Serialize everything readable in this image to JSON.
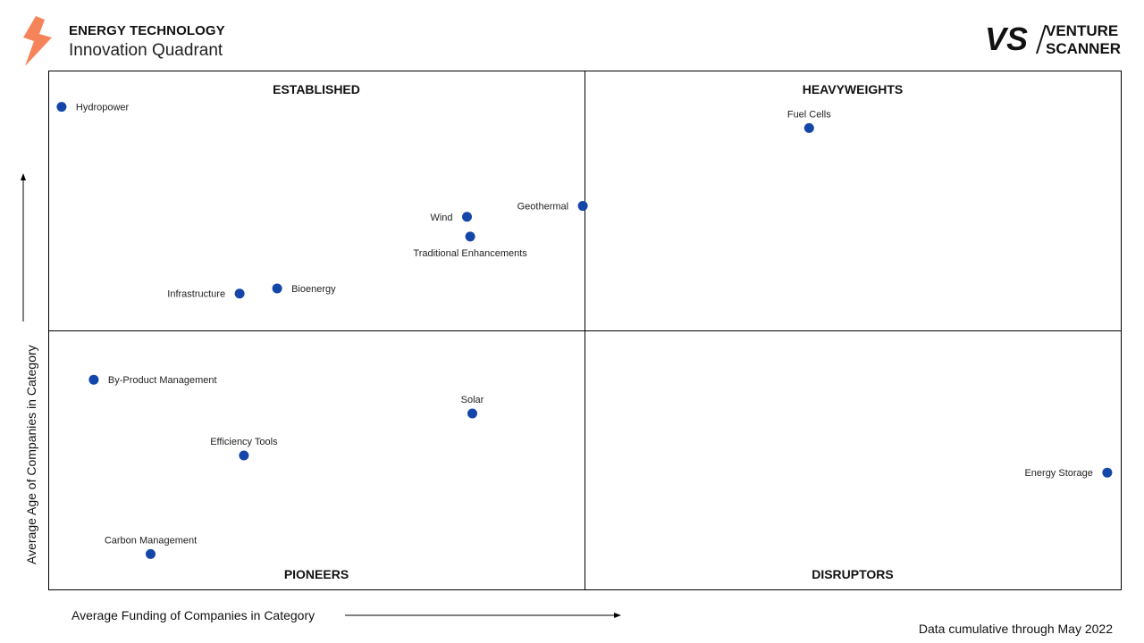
{
  "header": {
    "title": "ENERGY TECHNOLOGY",
    "subtitle": "Innovation Quadrant",
    "logo_icon": "lightning-bolt-icon",
    "logo_color": "#F5845A"
  },
  "brand": {
    "mark": "VS",
    "name_line1": "VENTURE",
    "name_line2": "SCANNER"
  },
  "footnote": "Data cumulative through May 2022",
  "colors": {
    "point": "#1346A8",
    "axis": "#000000"
  },
  "chart_data": {
    "type": "scatter",
    "xlabel": "Average Funding of Companies in Category",
    "ylabel": "Average Age of Companies in Category",
    "xlim": [
      0,
      100
    ],
    "ylim": [
      0,
      100
    ],
    "quadrants": {
      "top_left": "ESTABLISHED",
      "top_right": "HEAVYWEIGHTS",
      "bottom_left": "PIONEERS",
      "bottom_right": "DISRUPTORS"
    },
    "points": [
      {
        "name": "Hydropower",
        "x": 1.2,
        "y": 93.1,
        "label_pos": "right"
      },
      {
        "name": "Fuel Cells",
        "x": 70.9,
        "y": 89.0,
        "label_pos": "top"
      },
      {
        "name": "Geothermal",
        "x": 49.8,
        "y": 74.0,
        "label_pos": "left"
      },
      {
        "name": "Wind",
        "x": 39.0,
        "y": 71.9,
        "label_pos": "left"
      },
      {
        "name": "Traditional Enhancements",
        "x": 39.3,
        "y": 68.1,
        "label_pos": "bottom"
      },
      {
        "name": "Bioenergy",
        "x": 21.3,
        "y": 58.1,
        "label_pos": "right"
      },
      {
        "name": "Infrastructure",
        "x": 17.8,
        "y": 57.1,
        "label_pos": "left"
      },
      {
        "name": "By-Product Management",
        "x": 4.2,
        "y": 40.5,
        "label_pos": "right"
      },
      {
        "name": "Solar",
        "x": 39.5,
        "y": 34.0,
        "label_pos": "top"
      },
      {
        "name": "Efficiency Tools",
        "x": 18.2,
        "y": 25.9,
        "label_pos": "top"
      },
      {
        "name": "Energy Storage",
        "x": 98.7,
        "y": 22.6,
        "label_pos": "left"
      },
      {
        "name": "Carbon Management",
        "x": 9.5,
        "y": 6.9,
        "label_pos": "top"
      }
    ]
  }
}
